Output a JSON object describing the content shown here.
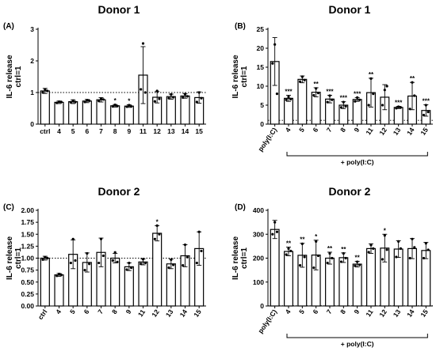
{
  "chart_data": [
    {
      "panel": "(A)",
      "title": "Donor 1",
      "type": "bar",
      "ylabel": [
        "IL-6 release",
        "ctrl=1"
      ],
      "ylim": [
        0,
        3
      ],
      "yticks": [
        "0",
        "1",
        "2",
        "3"
      ],
      "ref_line": 1,
      "categories": [
        "ctrl",
        "4",
        "5",
        "6",
        "7",
        "8",
        "9",
        "11",
        "12",
        "13",
        "14",
        "15"
      ],
      "values": [
        1.05,
        0.69,
        0.71,
        0.73,
        0.77,
        0.58,
        0.57,
        1.55,
        0.85,
        0.87,
        0.89,
        0.84
      ],
      "err": [
        0.08,
        0.04,
        0.06,
        0.05,
        0.07,
        0.04,
        0.04,
        0.9,
        0.18,
        0.08,
        0.07,
        0.18
      ],
      "points": [
        [
          1.1,
          1.0,
          1.05
        ],
        [
          0.71,
          0.67,
          0.7
        ],
        [
          0.74,
          0.69,
          0.7
        ],
        [
          0.76,
          0.7,
          0.74
        ],
        [
          0.8,
          0.73,
          0.78
        ],
        [
          0.61,
          0.56,
          0.57
        ],
        [
          0.6,
          0.55,
          0.56
        ],
        [
          2.55,
          1.1,
          1.0
        ],
        [
          1.05,
          0.72,
          0.8
        ],
        [
          0.94,
          0.82,
          0.85
        ],
        [
          0.95,
          0.84,
          0.88
        ],
        [
          1.0,
          0.7,
          0.82
        ]
      ],
      "annotations": [
        "",
        "",
        "",
        "",
        "",
        "*",
        "*",
        "",
        "",
        "",
        "",
        ""
      ]
    },
    {
      "panel": "(B)",
      "title": "Donor 1",
      "type": "bar",
      "ylabel": [
        "IL-6 release",
        "ctrl=1"
      ],
      "ylim": [
        0,
        25
      ],
      "yticks": [
        "0",
        "5",
        "10",
        "15",
        "20",
        "25"
      ],
      "ref_line": 1,
      "categories": [
        "poly(I:C)",
        "4",
        "5",
        "6",
        "7",
        "8",
        "9",
        "11",
        "12",
        "13",
        "14",
        "15"
      ],
      "values": [
        16.5,
        6.8,
        11.8,
        8.4,
        6.6,
        5.0,
        6.5,
        8.3,
        7.1,
        4.4,
        7.4,
        3.6
      ],
      "err": [
        6.3,
        0.8,
        0.9,
        1.2,
        1.0,
        0.9,
        0.5,
        3.8,
        3.3,
        0.3,
        3.6,
        1.5
      ],
      "points": [
        [
          21.0,
          16.0,
          8.0
        ],
        [
          7.2,
          6.4,
          6.6
        ],
        [
          12.5,
          11.2,
          11.6
        ],
        [
          9.4,
          7.6,
          8.2
        ],
        [
          7.5,
          5.8,
          6.4
        ],
        [
          5.8,
          4.4,
          4.7
        ],
        [
          7.0,
          6.0,
          6.4
        ],
        [
          12.0,
          5.0,
          8.0
        ],
        [
          9.0,
          5.0,
          10.0
        ],
        [
          4.6,
          4.2,
          4.4
        ],
        [
          11.0,
          4.0,
          7.5
        ],
        [
          5.0,
          2.4,
          3.2
        ]
      ],
      "annotations": [
        "",
        "***",
        "",
        "**",
        "***",
        "***",
        "***",
        "**",
        "",
        "***",
        "**",
        "***"
      ],
      "group_label": "+ poly(I:C)"
    },
    {
      "panel": "(C)",
      "title": "Donor 2",
      "type": "bar",
      "ylabel": [
        "IL-6 release",
        "ctrl=1"
      ],
      "ylim": [
        0,
        2
      ],
      "yticks": [
        "0.00",
        "0.25",
        "0.50",
        "0.75",
        "1.00",
        "1.25",
        "1.50",
        "1.75",
        "2.00"
      ],
      "ref_line": 1,
      "categories": [
        "ctrl",
        "4",
        "5",
        "6",
        "7",
        "8",
        "9",
        "11",
        "12",
        "13",
        "14",
        "15"
      ],
      "values": [
        1.0,
        0.65,
        1.08,
        0.91,
        1.12,
        1.0,
        0.82,
        0.92,
        1.52,
        0.88,
        1.05,
        1.2
      ],
      "err": [
        0.04,
        0.03,
        0.3,
        0.2,
        0.3,
        0.1,
        0.08,
        0.06,
        0.16,
        0.1,
        0.23,
        0.35
      ],
      "points": [
        [
          1.02,
          0.97,
          1.0
        ],
        [
          0.67,
          0.63,
          0.65
        ],
        [
          1.4,
          0.9,
          0.95
        ],
        [
          1.1,
          0.75,
          0.88
        ],
        [
          1.4,
          0.9,
          1.05
        ],
        [
          1.12,
          0.95,
          0.92
        ],
        [
          0.9,
          0.76,
          0.8
        ],
        [
          0.98,
          0.88,
          0.9
        ],
        [
          1.68,
          1.4,
          1.5
        ],
        [
          0.97,
          0.8,
          0.86
        ],
        [
          1.28,
          0.85,
          1.02
        ],
        [
          1.55,
          0.9,
          1.15
        ]
      ],
      "annotations": [
        "",
        "",
        "",
        "",
        "",
        "",
        "",
        "",
        "*",
        "",
        "",
        ""
      ]
    },
    {
      "panel": "(D)",
      "title": "Donor 2",
      "type": "bar",
      "ylabel": [
        "IL-6 release",
        "ctrl=1"
      ],
      "ylim": [
        0,
        400
      ],
      "yticks": [
        "0",
        "100",
        "200",
        "300",
        "400"
      ],
      "ref_line": 1,
      "categories": [
        "poly(I:C)",
        "4",
        "5",
        "6",
        "7",
        "8",
        "9",
        "11",
        "12",
        "13",
        "14",
        "15"
      ],
      "values": [
        320,
        228,
        212,
        213,
        200,
        202,
        175,
        240,
        242,
        238,
        240,
        232
      ],
      "err": [
        38,
        18,
        50,
        62,
        25,
        20,
        12,
        20,
        58,
        35,
        42,
        34
      ],
      "points": [
        [
          350,
          300,
          310
        ],
        [
          240,
          215,
          230
        ],
        [
          260,
          170,
          205
        ],
        [
          270,
          160,
          210
        ],
        [
          220,
          180,
          200
        ],
        [
          220,
          185,
          200
        ],
        [
          185,
          168,
          172
        ],
        [
          255,
          225,
          240
        ],
        [
          295,
          195,
          235
        ],
        [
          270,
          205,
          240
        ],
        [
          280,
          200,
          245
        ],
        [
          262,
          200,
          235
        ]
      ],
      "annotations": [
        "",
        "**",
        "**",
        "*",
        "**",
        "**",
        "**",
        "",
        "*",
        "",
        "",
        ""
      ],
      "group_label": "+ poly(I:C)"
    }
  ]
}
